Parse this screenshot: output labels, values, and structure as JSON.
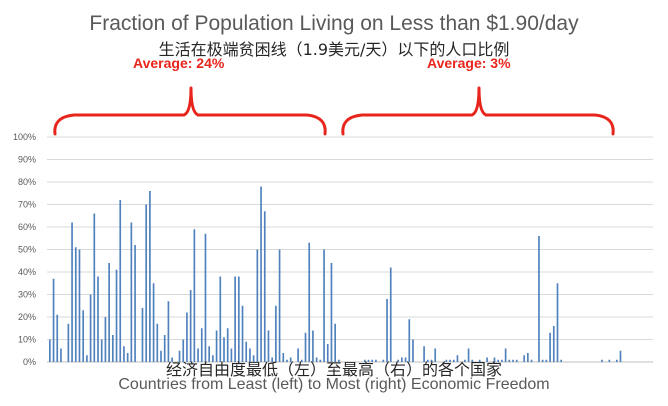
{
  "chart_data": {
    "type": "bar",
    "title": "Fraction of Population Living on Less than $1.90/day",
    "subtitle": "生活在极端贫困线（1.9美元/天）以下的人口比例",
    "xlabel": "Countries from Least (left) to Most (right) Economic Freedom",
    "xlabel_cn": "经济自由度最低（左）至最高（右）的各个国家",
    "ylabel": "",
    "ylim": [
      0,
      1
    ],
    "y_ticks": [
      "0%",
      "10%",
      "20%",
      "30%",
      "40%",
      "50%",
      "60%",
      "70%",
      "80%",
      "90%",
      "100%"
    ],
    "grid": true,
    "bar_color": "#4f81bd",
    "annotations": [
      {
        "text": "Average: 24%",
        "group": "left",
        "color": "#e8251c"
      },
      {
        "text": "Average: 3%",
        "group": "right",
        "color": "#e8251c"
      }
    ],
    "values": [
      0.1,
      0.37,
      0.21,
      0.06,
      0,
      0.17,
      0.62,
      0.51,
      0.5,
      0.23,
      0.03,
      0.3,
      0.66,
      0.38,
      0.1,
      0.2,
      0.44,
      0.12,
      0.41,
      0.72,
      0.07,
      0.04,
      0.62,
      0.52,
      0,
      0.24,
      0.7,
      0.76,
      0.35,
      0.17,
      0.05,
      0.12,
      0.27,
      0.02,
      0,
      0.05,
      0.1,
      0.22,
      0.32,
      0.59,
      0.06,
      0.15,
      0.57,
      0.07,
      0.03,
      0.14,
      0.38,
      0.11,
      0.15,
      0.06,
      0.38,
      0.38,
      0.25,
      0.09,
      0.06,
      0.03,
      0.5,
      0.78,
      0.67,
      0.14,
      0.02,
      0.25,
      0.5,
      0.04,
      0.01,
      0.02,
      0,
      0.06,
      0.01,
      0.13,
      0.53,
      0.14,
      0.02,
      0.01,
      0.5,
      0.08,
      0.44,
      0.17,
      0.01,
      0,
      0,
      0,
      0,
      0,
      0,
      0.01,
      0.01,
      0.01,
      0.01,
      0,
      0.01,
      0.28,
      0.42,
      0,
      0.01,
      0.02,
      0.02,
      0.19,
      0.1,
      0,
      0,
      0.07,
      0.01,
      0.01,
      0.06,
      0,
      0,
      0.01,
      0.01,
      0.01,
      0.03,
      0,
      0.01,
      0.06,
      0.01,
      0,
      0.01,
      0,
      0.02,
      0,
      0.02,
      0.01,
      0.01,
      0.06,
      0.01,
      0.01,
      0.01,
      0,
      0.03,
      0.04,
      0.01,
      0,
      0.56,
      0.01,
      0.01,
      0.13,
      0.16,
      0.35,
      0.01,
      0,
      0,
      0,
      0,
      0,
      0,
      0,
      0,
      0,
      0,
      0.01,
      0,
      0.01,
      0,
      0.01,
      0.05,
      0,
      0,
      0,
      0,
      0,
      0,
      0,
      0
    ]
  },
  "colors": {
    "bar": "#4f81bd",
    "bracket": "#e8251c",
    "grid": "#d9d9d9",
    "axis": "#bfbfbf"
  }
}
